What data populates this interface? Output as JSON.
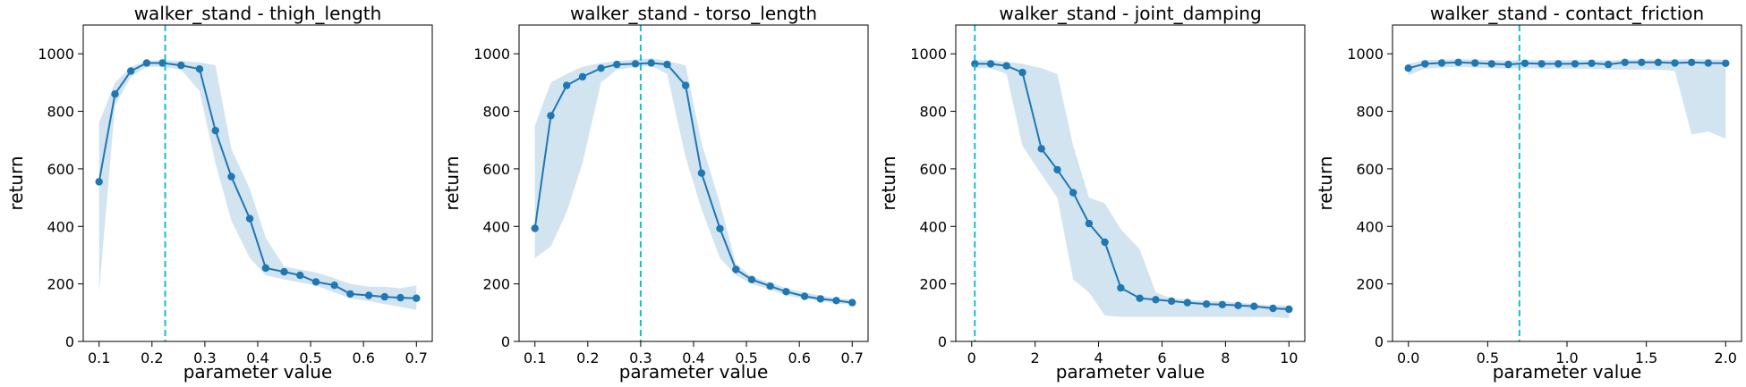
{
  "chart_data": [
    {
      "type": "line",
      "title": "walker_stand - thigh_length",
      "xlabel": "parameter value",
      "ylabel": "return",
      "xlim": [
        0.07,
        0.73
      ],
      "ylim": [
        0,
        1100
      ],
      "xticks": [
        0.1,
        0.2,
        0.3,
        0.4,
        0.5,
        0.6,
        0.7
      ],
      "xtick_labels": [
        "0.1",
        "0.2",
        "0.3",
        "0.4",
        "0.5",
        "0.6",
        "0.7"
      ],
      "yticks": [
        0,
        200,
        400,
        600,
        800,
        1000
      ],
      "ytick_labels": [
        "0",
        "200",
        "400",
        "600",
        "800",
        "1000"
      ],
      "vline": 0.225,
      "line_color": "#1f77b4",
      "band_color": "#1f77b4",
      "vline_color": "#17becf",
      "series": [
        {
          "x": [
            0.1,
            0.13,
            0.16,
            0.19,
            0.22,
            0.255,
            0.29,
            0.32,
            0.35,
            0.385,
            0.415,
            0.45,
            0.48,
            0.51,
            0.545,
            0.575,
            0.61,
            0.64,
            0.67,
            0.7
          ],
          "y": [
            555,
            860,
            940,
            968,
            968,
            960,
            947,
            733,
            573,
            427,
            255,
            242,
            230,
            207,
            195,
            165,
            160,
            155,
            152,
            150
          ],
          "lower": [
            170,
            820,
            920,
            955,
            955,
            945,
            870,
            620,
            420,
            290,
            230,
            215,
            205,
            195,
            170,
            150,
            140,
            130,
            120,
            110
          ],
          "upper": [
            760,
            900,
            955,
            975,
            978,
            975,
            970,
            960,
            670,
            530,
            360,
            260,
            250,
            240,
            220,
            200,
            190,
            190,
            185,
            195
          ]
        }
      ]
    },
    {
      "type": "line",
      "title": "walker_stand - torso_length",
      "xlabel": "parameter value",
      "ylabel": "return",
      "xlim": [
        0.07,
        0.73
      ],
      "ylim": [
        0,
        1100
      ],
      "xticks": [
        0.1,
        0.2,
        0.3,
        0.4,
        0.5,
        0.6,
        0.7
      ],
      "xtick_labels": [
        "0.1",
        "0.2",
        "0.3",
        "0.4",
        "0.5",
        "0.6",
        "0.7"
      ],
      "yticks": [
        0,
        200,
        400,
        600,
        800,
        1000
      ],
      "ytick_labels": [
        "0",
        "200",
        "400",
        "600",
        "800",
        "1000"
      ],
      "vline": 0.3,
      "line_color": "#1f77b4",
      "band_color": "#1f77b4",
      "vline_color": "#17becf",
      "series": [
        {
          "x": [
            0.1,
            0.13,
            0.16,
            0.19,
            0.225,
            0.255,
            0.29,
            0.32,
            0.35,
            0.385,
            0.415,
            0.45,
            0.48,
            0.51,
            0.545,
            0.575,
            0.61,
            0.64,
            0.67,
            0.7
          ],
          "y": [
            393,
            785,
            890,
            920,
            950,
            963,
            965,
            968,
            963,
            890,
            585,
            392,
            250,
            215,
            192,
            173,
            157,
            148,
            142,
            135
          ],
          "lower": [
            290,
            330,
            450,
            620,
            900,
            945,
            955,
            958,
            930,
            640,
            460,
            290,
            230,
            200,
            180,
            160,
            148,
            140,
            132,
            128
          ],
          "upper": [
            750,
            900,
            930,
            955,
            968,
            975,
            980,
            985,
            975,
            960,
            690,
            480,
            270,
            225,
            205,
            185,
            170,
            160,
            150,
            145
          ]
        }
      ]
    },
    {
      "type": "line",
      "title": "walker_stand - joint_damping",
      "xlabel": "parameter value",
      "ylabel": "return",
      "xlim": [
        -0.5,
        10.5
      ],
      "ylim": [
        0,
        1100
      ],
      "xticks": [
        0,
        2,
        4,
        6,
        8,
        10
      ],
      "xtick_labels": [
        "0",
        "2",
        "4",
        "6",
        "8",
        "10"
      ],
      "yticks": [
        0,
        200,
        400,
        600,
        800,
        1000
      ],
      "ytick_labels": [
        "0",
        "200",
        "400",
        "600",
        "800",
        "1000"
      ],
      "vline": 0.1,
      "line_color": "#1f77b4",
      "band_color": "#1f77b4",
      "vline_color": "#17becf",
      "series": [
        {
          "x": [
            0.1,
            0.6,
            1.1,
            1.6,
            2.2,
            2.7,
            3.2,
            3.7,
            4.2,
            4.7,
            5.3,
            5.8,
            6.3,
            6.8,
            7.4,
            7.9,
            8.4,
            8.9,
            9.5,
            10.0
          ],
          "y": [
            965,
            965,
            958,
            935,
            670,
            597,
            517,
            410,
            345,
            186,
            150,
            145,
            140,
            135,
            130,
            128,
            125,
            122,
            115,
            112
          ],
          "lower": [
            950,
            950,
            930,
            680,
            580,
            500,
            215,
            170,
            90,
            85,
            85,
            85,
            85,
            85,
            85,
            85,
            85,
            85,
            85,
            80
          ],
          "upper": [
            978,
            978,
            972,
            965,
            950,
            930,
            680,
            500,
            480,
            390,
            320,
            170,
            150,
            145,
            140,
            140,
            135,
            130,
            125,
            125
          ]
        }
      ]
    },
    {
      "type": "line",
      "title": "walker_stand - contact_friction",
      "xlabel": "parameter value",
      "ylabel": "return",
      "xlim": [
        -0.1,
        2.1
      ],
      "ylim": [
        0,
        1100
      ],
      "xticks": [
        0.0,
        0.5,
        1.0,
        1.5,
        2.0
      ],
      "xtick_labels": [
        "0.0",
        "0.5",
        "1.0",
        "1.5",
        "2.0"
      ],
      "yticks": [
        0,
        200,
        400,
        600,
        800,
        1000
      ],
      "ytick_labels": [
        "0",
        "200",
        "400",
        "600",
        "800",
        "1000"
      ],
      "vline": 0.7,
      "line_color": "#1f77b4",
      "band_color": "#1f77b4",
      "vline_color": "#17becf",
      "series": [
        {
          "x": [
            0.0,
            0.105,
            0.21,
            0.315,
            0.42,
            0.525,
            0.63,
            0.735,
            0.84,
            0.945,
            1.05,
            1.155,
            1.26,
            1.365,
            1.47,
            1.575,
            1.68,
            1.785,
            1.89,
            2.0
          ],
          "y": [
            950,
            965,
            968,
            970,
            968,
            965,
            963,
            967,
            965,
            965,
            965,
            967,
            963,
            970,
            970,
            970,
            968,
            970,
            968,
            967
          ],
          "lower": [
            925,
            948,
            952,
            955,
            952,
            950,
            948,
            950,
            948,
            948,
            948,
            948,
            946,
            945,
            945,
            945,
            940,
            720,
            730,
            705
          ],
          "upper": [
            965,
            978,
            980,
            982,
            980,
            978,
            976,
            978,
            978,
            978,
            978,
            978,
            976,
            980,
            980,
            980,
            980,
            982,
            980,
            980
          ]
        }
      ]
    }
  ]
}
